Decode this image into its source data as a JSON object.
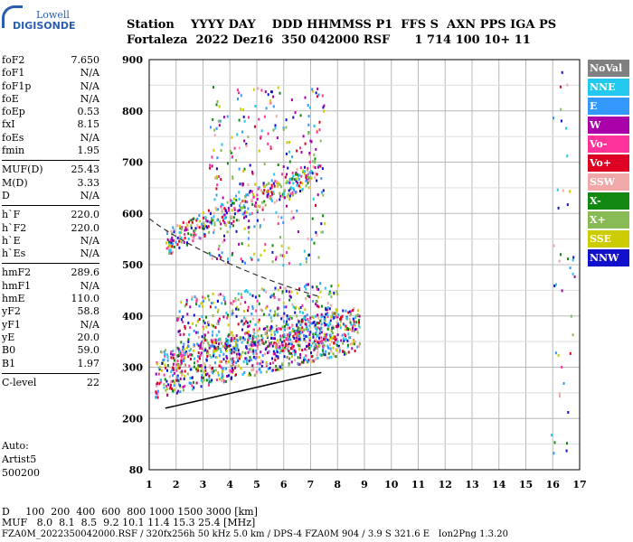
{
  "logo": {
    "top": "Lowell",
    "bottom": "DIGISONDE"
  },
  "header": {
    "line1": "Station    YYYY DAY    DDD HHMMSS P1  FFS S  AXN PPS IGA PS",
    "line2": "Fortaleza  2022 Dez16  350 042000 RSF      1 714 100 10+ 11"
  },
  "params": [
    [
      [
        "foF2",
        "7.650"
      ],
      [
        "foF1",
        "N/A"
      ],
      [
        "foF1p",
        "N/A"
      ],
      [
        "foE",
        "N/A"
      ],
      [
        "foEp",
        "0.53"
      ],
      [
        "fxI",
        "8.15"
      ],
      [
        "foEs",
        "N/A"
      ],
      [
        "fmin",
        "1.95"
      ]
    ],
    [
      [
        "MUF(D)",
        "25.43"
      ],
      [
        "M(D)",
        "3.33"
      ],
      [
        "D",
        "N/A"
      ]
    ],
    [
      [
        "h`F",
        "220.0"
      ],
      [
        "h`F2",
        "220.0"
      ],
      [
        "h`E",
        "N/A"
      ],
      [
        "h`Es",
        "N/A"
      ]
    ],
    [
      [
        "hmF2",
        "289.6"
      ],
      [
        "hmF1",
        "N/A"
      ],
      [
        "hmE",
        "110.0"
      ],
      [
        "yF2",
        "58.8"
      ],
      [
        "yF1",
        "N/A"
      ],
      [
        "yE",
        "20.0"
      ],
      [
        "B0",
        "59.0"
      ],
      [
        "B1",
        "1.97"
      ]
    ],
    [
      [
        "C-level",
        "22"
      ]
    ]
  ],
  "auto": {
    "line1": "Auto:",
    "line2": "Artist5",
    "line3": "500200"
  },
  "legend": [
    {
      "label": "NoVal",
      "color": "#808080"
    },
    {
      "label": "NNE",
      "color": "#22c8ee"
    },
    {
      "label": "E",
      "color": "#3399ff"
    },
    {
      "label": "W",
      "color": "#aa00aa"
    },
    {
      "label": "Vo-",
      "color": "#ff3399"
    },
    {
      "label": "Vo+",
      "color": "#dd0022"
    },
    {
      "label": "SSW",
      "color": "#f0a8a8"
    },
    {
      "label": "X-",
      "color": "#118811"
    },
    {
      "label": "X+",
      "color": "#88bb55"
    },
    {
      "label": "SSE",
      "color": "#cccc00"
    },
    {
      "label": "NNW",
      "color": "#1111cc"
    }
  ],
  "axes": {
    "x_ticks": [
      "1",
      "2",
      "3",
      "4",
      "5",
      "6",
      "7",
      "8",
      "9",
      "10",
      "11",
      "12",
      "13",
      "14",
      "15",
      "16",
      "17"
    ],
    "y_ticks": [
      "900",
      "800",
      "700",
      "600",
      "500",
      "400",
      "300",
      "200",
      "80"
    ]
  },
  "footer": {
    "line1": "D     100  200  400  600  800 1000 1500 3000 [km]",
    "line2": "MUF   8.0  8.1  8.5  9.2 10.1 11.4 15.3 25.4 [MHz]",
    "line3": "FZA0M_2022350042000.RSF / 320fx256h 50 kHz 5.0 km / DPS-4 FZA0M 904 / 3.9 S 321.6 E   Ion2Png 1.3.20"
  }
}
